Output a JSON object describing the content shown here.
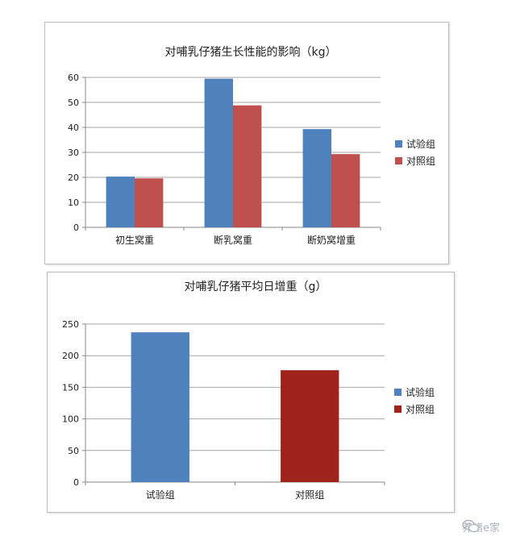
{
  "chart_data": [
    {
      "type": "bar",
      "title": "对哺乳仔猪生长性能的影响（kg）",
      "categories": [
        "初生窝重",
        "断乳窝重",
        "断奶窝增重"
      ],
      "series": [
        {
          "name": "试验组",
          "values": [
            20.3,
            59.5,
            39.3
          ],
          "color": "#4f81bd"
        },
        {
          "name": "对照组",
          "values": [
            19.6,
            48.8,
            29.3
          ],
          "color": "#c0504d"
        }
      ],
      "yticks": [
        0,
        10,
        20,
        30,
        40,
        50,
        60
      ],
      "ylim": [
        0,
        60
      ],
      "grid": true,
      "legend": "right"
    },
    {
      "type": "bar",
      "title": "对哺乳仔猪平均日增重（g）",
      "categories": [
        "试验组",
        "对照组"
      ],
      "values": [
        237,
        177
      ],
      "colors": [
        "#4f81bd",
        "#a0231b"
      ],
      "legend_items": [
        {
          "name": "试验组",
          "color": "#4f81bd"
        },
        {
          "name": "对照组",
          "color": "#a0231b"
        }
      ],
      "yticks": [
        0,
        50,
        100,
        150,
        200,
        250
      ],
      "ylim": [
        0,
        250
      ],
      "grid": true,
      "legend": "right"
    }
  ],
  "watermark": {
    "text": "养猪e家",
    "icon": "wechat-icon"
  }
}
